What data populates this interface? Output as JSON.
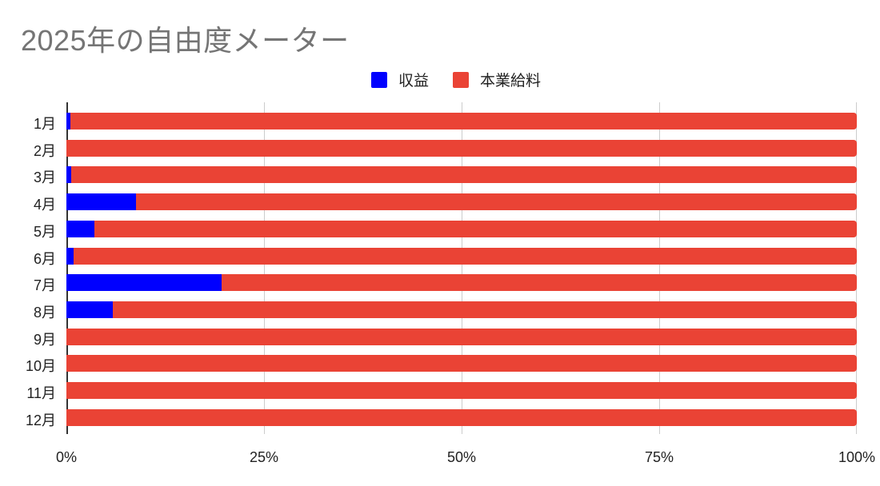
{
  "chart_data": {
    "type": "bar",
    "orientation": "horizontal",
    "stacked": "percent",
    "title": "2025年の自由度メーター",
    "xlabel": "",
    "ylabel": "",
    "xlim": [
      0,
      100
    ],
    "x_ticks": [
      "0%",
      "25%",
      "50%",
      "75%",
      "100%"
    ],
    "grid": true,
    "legend_position": "top",
    "categories": [
      "1月",
      "2月",
      "3月",
      "4月",
      "5月",
      "6月",
      "7月",
      "8月",
      "9月",
      "10月",
      "11月",
      "12月"
    ],
    "series": [
      {
        "name": "収益",
        "color": "#0000ff",
        "values": [
          0.5,
          0.0,
          0.6,
          8.8,
          3.5,
          0.9,
          19.6,
          5.9,
          0.0,
          0.0,
          0.0,
          0.0
        ]
      },
      {
        "name": "本業給料",
        "color": "#ea4335",
        "values": [
          99.5,
          100.0,
          99.4,
          91.2,
          96.5,
          99.1,
          80.4,
          94.1,
          100.0,
          100.0,
          100.0,
          100.0
        ]
      }
    ]
  },
  "header": {
    "title": "2025年の自由度メーター"
  },
  "legend": [
    {
      "label": "収益",
      "color": "#0000ff"
    },
    {
      "label": "本業給料",
      "color": "#ea4335"
    }
  ]
}
